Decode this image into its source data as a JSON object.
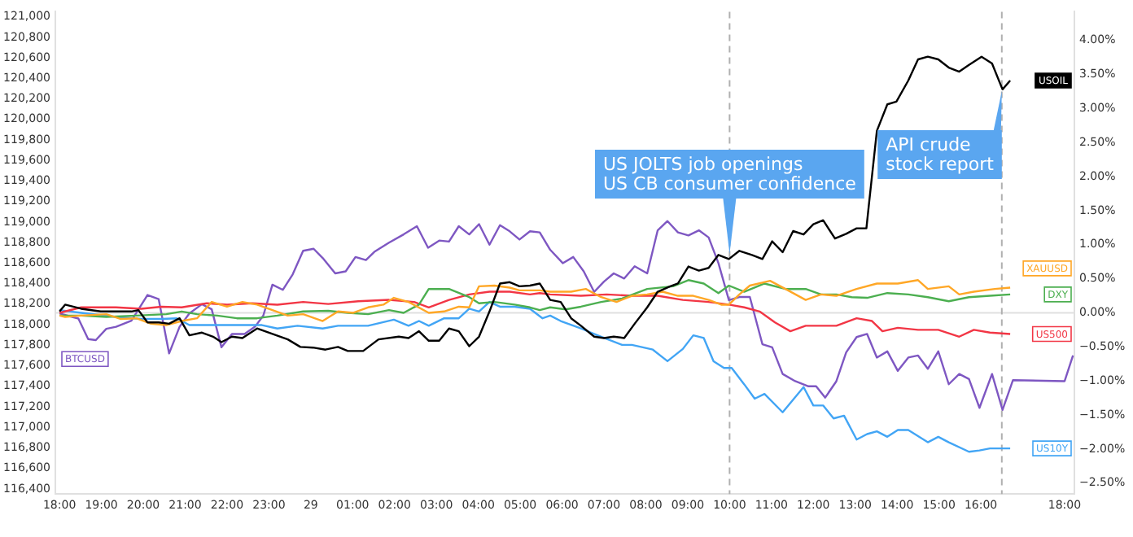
{
  "chart_data": {
    "type": "line",
    "xlim": [
      "--07-28T17:54",
      "--07-29T18:14"
    ],
    "xticks": [
      {
        "value": "--07-28T18:00",
        "label": "18:00"
      },
      {
        "value": "--07-28T19:00",
        "label": "19:00"
      },
      {
        "value": "--07-28T20:00",
        "label": "20:00"
      },
      {
        "value": "--07-28T21:00",
        "label": "21:00"
      },
      {
        "value": "--07-28T22:00",
        "label": "22:00"
      },
      {
        "value": "--07-28T23:00",
        "label": "23:00"
      },
      {
        "value": "--07-29T00:00",
        "label": "29"
      },
      {
        "value": "--07-29T01:00",
        "label": "01:00"
      },
      {
        "value": "--07-29T02:00",
        "label": "02:00"
      },
      {
        "value": "--07-29T03:00",
        "label": "03:00"
      },
      {
        "value": "--07-29T04:00",
        "label": "04:00"
      },
      {
        "value": "--07-29T05:00",
        "label": "05:00"
      },
      {
        "value": "--07-29T06:00",
        "label": "06:00"
      },
      {
        "value": "--07-29T07:00",
        "label": "07:00"
      },
      {
        "value": "--07-29T08:00",
        "label": "08:00"
      },
      {
        "value": "--07-29T09:00",
        "label": "09:00"
      },
      {
        "value": "--07-29T10:00",
        "label": "10:00"
      },
      {
        "value": "--07-29T11:00",
        "label": "11:00"
      },
      {
        "value": "--07-29T12:00",
        "label": "12:00"
      },
      {
        "value": "--07-29T13:00",
        "label": "13:00"
      },
      {
        "value": "--07-29T14:00",
        "label": "14:00"
      },
      {
        "value": "--07-29T15:00",
        "label": "15:00"
      },
      {
        "value": "--07-29T16:00",
        "label": "16:00"
      },
      {
        "value": "--07-29T18:00",
        "label": "18:00"
      }
    ],
    "ylim": [
      116350,
      121050
    ],
    "yticks": [
      {
        "value": 116400,
        "label": "116,400"
      },
      {
        "value": 116600,
        "label": "116,600"
      },
      {
        "value": 116800,
        "label": "116,800"
      },
      {
        "value": 117000,
        "label": "117,000"
      },
      {
        "value": 117200,
        "label": "117,200"
      },
      {
        "value": 117400,
        "label": "117,400"
      },
      {
        "value": 117600,
        "label": "117,600"
      },
      {
        "value": 117800,
        "label": "117,800"
      },
      {
        "value": 118000,
        "label": "118,000"
      },
      {
        "value": 118200,
        "label": "118,200"
      },
      {
        "value": 118400,
        "label": "118,400"
      },
      {
        "value": 118600,
        "label": "118,600"
      },
      {
        "value": 118800,
        "label": "118,800"
      },
      {
        "value": 119000,
        "label": "119,000"
      },
      {
        "value": 119200,
        "label": "119,200"
      },
      {
        "value": 119400,
        "label": "119,400"
      },
      {
        "value": 119600,
        "label": "119,600"
      },
      {
        "value": 119800,
        "label": "119,800"
      },
      {
        "value": 120000,
        "label": "120,000"
      },
      {
        "value": 120200,
        "label": "120,200"
      },
      {
        "value": 120400,
        "label": "120,400"
      },
      {
        "value": 120600,
        "label": "120,600"
      },
      {
        "value": 120800,
        "label": "120,800"
      },
      {
        "value": 121000,
        "label": "121,000"
      }
    ],
    "y2lim": [
      -2.66,
      4.42
    ],
    "y2ticks": [
      {
        "value": -2.5,
        "label": "−2.50%"
      },
      {
        "value": -2,
        "label": "−2.00%"
      },
      {
        "value": -1.5,
        "label": "−1.50%"
      },
      {
        "value": -1,
        "label": "−1.00%"
      },
      {
        "value": -0.5,
        "label": "−0.50%"
      },
      {
        "value": 0,
        "label": "0.00%"
      },
      {
        "value": 0.5,
        "label": "0.50%"
      },
      {
        "value": 1,
        "label": "1.00%"
      },
      {
        "value": 1.5,
        "label": "1.50%"
      },
      {
        "value": 2,
        "label": "2.00%"
      },
      {
        "value": 2.5,
        "label": "2.50%"
      },
      {
        "value": 3,
        "label": "3.00%"
      },
      {
        "value": 3.5,
        "label": "3.50%"
      },
      {
        "value": 4,
        "label": "4.00%"
      }
    ],
    "marker": "none",
    "line_style": "solid",
    "ref_lines": [
      {
        "axis": "y2",
        "value": 0,
        "color": "#e0e0e0",
        "line_style": "solid"
      },
      {
        "axis": "x",
        "value": "--07-29T10:00",
        "label": "US JOLTS job openings\nUS CB consumer confidence",
        "color": "#b0b0b0",
        "line_style": "dashed"
      },
      {
        "axis": "x",
        "value": "--07-29T16:30",
        "label": "API crude\nstock report",
        "color": "#b0b0b0",
        "line_style": "dashed"
      }
    ],
    "series": [
      {
        "name": "USOIL",
        "color": "#000000",
        "axis": "y2",
        "x": [
          "--07-28T18:00",
          "--07-28T18:08",
          "--07-28T18:31",
          "--07-28T18:59",
          "--07-28T19:43",
          "--07-28T19:53",
          "--07-28T20:06",
          "--07-28T20:22",
          "--07-28T20:37",
          "--07-28T20:52",
          "--07-28T21:06",
          "--07-28T21:24",
          "--07-28T21:40",
          "--07-28T21:52",
          "--07-28T22:07",
          "--07-28T22:22",
          "--07-28T22:43",
          "--07-28T23:05",
          "--07-28T23:27",
          "--07-28T23:45",
          "--07-29T00:03",
          "--07-29T00:21",
          "--07-29T00:39",
          "--07-29T00:53",
          "--07-29T01:15",
          "--07-29T01:37",
          "--07-29T02:06",
          "--07-29T02:20",
          "--07-29T02:35",
          "--07-29T02:49",
          "--07-29T03:04",
          "--07-29T03:18",
          "--07-29T03:32",
          "--07-29T03:47",
          "--07-29T04:01",
          "--07-29T04:16",
          "--07-29T04:31",
          "--07-29T04:45",
          "--07-29T04:59",
          "--07-29T05:14",
          "--07-29T05:28",
          "--07-29T05:43",
          "--07-29T05:58",
          "--07-29T06:13",
          "--07-29T06:27",
          "--07-29T06:46",
          "--07-29T07:00",
          "--07-29T07:14",
          "--07-29T07:29",
          "--07-29T07:44",
          "--07-29T08:02",
          "--07-29T08:17",
          "--07-29T08:35",
          "--07-29T08:46",
          "--07-29T09:01",
          "--07-29T09:16",
          "--07-29T09:30",
          "--07-29T09:44",
          "--07-29T09:59",
          "--07-29T10:14",
          "--07-29T10:32",
          "--07-29T10:47",
          "--07-29T11:01",
          "--07-29T11:16",
          "--07-29T11:31",
          "--07-29T11:46",
          "--07-29T12:00",
          "--07-29T12:14",
          "--07-29T12:31",
          "--07-29T12:47",
          "--07-29T13:02",
          "--07-29T13:16",
          "--07-29T13:20",
          "--07-29T13:31",
          "--07-29T13:46",
          "--07-29T13:59",
          "--07-29T14:16",
          "--07-29T14:30",
          "--07-29T14:44",
          "--07-29T14:59",
          "--07-29T15:14",
          "--07-29T15:29",
          "--07-29T15:43",
          "--07-29T16:01",
          "--07-29T16:16",
          "--07-29T16:31",
          "--07-29T16:42"
        ],
        "values": [
          0.02,
          0.12,
          0.06,
          0.02,
          0.02,
          0.04,
          -0.14,
          -0.14,
          -0.16,
          -0.08,
          -0.33,
          -0.29,
          -0.35,
          -0.43,
          -0.35,
          -0.37,
          -0.23,
          -0.31,
          -0.39,
          -0.5,
          -0.51,
          -0.54,
          -0.5,
          -0.56,
          -0.56,
          -0.39,
          -0.35,
          -0.37,
          -0.27,
          -0.41,
          -0.41,
          -0.23,
          -0.27,
          -0.49,
          -0.35,
          0.02,
          0.43,
          0.45,
          0.39,
          0.4,
          0.43,
          0.19,
          0.16,
          -0.08,
          -0.19,
          -0.35,
          -0.37,
          -0.35,
          -0.37,
          -0.16,
          0.08,
          0.31,
          0.39,
          0.43,
          0.68,
          0.62,
          0.66,
          0.85,
          0.79,
          0.91,
          0.85,
          0.79,
          1.05,
          0.89,
          1.2,
          1.15,
          1.3,
          1.36,
          1.09,
          1.16,
          1.24,
          1.24,
          1.63,
          2.67,
          3.06,
          3.1,
          3.41,
          3.72,
          3.76,
          3.72,
          3.6,
          3.54,
          3.64,
          3.76,
          3.66,
          3.28,
          3.41
        ]
      },
      {
        "name": "XAUUSD",
        "color": "#ffa726",
        "axis": "y2",
        "x": [
          "--07-28T18:00",
          "--07-28T18:08",
          "--07-28T18:31",
          "--07-28T19:07",
          "--07-28T19:28",
          "--07-28T19:50",
          "--07-28T20:11",
          "--07-28T20:33",
          "--07-28T20:55",
          "--07-28T21:17",
          "--07-28T21:38",
          "--07-28T22:00",
          "--07-28T22:22",
          "--07-28T22:43",
          "--07-28T23:05",
          "--07-28T23:27",
          "--07-28T23:49",
          "--07-29T00:17",
          "--07-29T00:39",
          "--07-29T01:01",
          "--07-29T01:22",
          "--07-29T01:44",
          "--07-29T01:59",
          "--07-29T02:20",
          "--07-29T02:49",
          "--07-29T03:11",
          "--07-29T03:32",
          "--07-29T03:47",
          "--07-29T04:01",
          "--07-29T04:23",
          "--07-29T04:45",
          "--07-29T04:59",
          "--07-29T05:28",
          "--07-29T05:43",
          "--07-29T06:13",
          "--07-29T06:34",
          "--07-29T06:56",
          "--07-29T07:18",
          "--07-29T07:40",
          "--07-29T08:02",
          "--07-29T08:24",
          "--07-29T08:46",
          "--07-29T09:08",
          "--07-29T09:30",
          "--07-29T09:48",
          "--07-29T09:59",
          "--07-29T10:14",
          "--07-29T10:29",
          "--07-29T10:58",
          "--07-29T11:20",
          "--07-29T11:49",
          "--07-29T12:11",
          "--07-29T12:33",
          "--07-29T13:02",
          "--07-29T13:31",
          "--07-29T14:01",
          "--07-29T14:30",
          "--07-29T14:44",
          "--07-29T15:14",
          "--07-29T15:29",
          "--07-29T15:50",
          "--07-29T16:20",
          "--07-29T16:42"
        ],
        "values": [
          -0.04,
          -0.06,
          -0.04,
          -0.02,
          -0.09,
          -0.08,
          -0.16,
          -0.18,
          -0.12,
          -0.08,
          0.16,
          0.09,
          0.16,
          0.12,
          0.04,
          -0.04,
          -0.02,
          -0.12,
          0.02,
          0,
          0.08,
          0.12,
          0.22,
          0.16,
          0,
          0.02,
          0.09,
          0.08,
          0.39,
          0.4,
          0.37,
          0.33,
          0.33,
          0.31,
          0.31,
          0.35,
          0.23,
          0.16,
          0.25,
          0.27,
          0.31,
          0.25,
          0.25,
          0.19,
          0.12,
          0.12,
          0.27,
          0.4,
          0.47,
          0.35,
          0.19,
          0.27,
          0.25,
          0.35,
          0.43,
          0.43,
          0.48,
          0.35,
          0.39,
          0.27,
          0.31,
          0.35,
          0.37
        ]
      },
      {
        "name": "DXY",
        "color": "#4caf50",
        "axis": "y2",
        "x": [
          "--07-28T18:00",
          "--07-28T18:31",
          "--07-28T19:07",
          "--07-28T19:50",
          "--07-28T20:33",
          "--07-28T20:55",
          "--07-28T21:17",
          "--07-28T21:46",
          "--07-28T22:14",
          "--07-28T22:43",
          "--07-28T23:12",
          "--07-28T23:49",
          "--07-29T00:25",
          "--07-29T00:53",
          "--07-29T01:22",
          "--07-29T01:52",
          "--07-29T02:13",
          "--07-29T02:35",
          "--07-29T02:49",
          "--07-29T03:18",
          "--07-29T03:47",
          "--07-29T04:01",
          "--07-29T04:23",
          "--07-29T04:52",
          "--07-29T05:14",
          "--07-29T05:28",
          "--07-29T05:43",
          "--07-29T06:05",
          "--07-29T06:27",
          "--07-29T06:56",
          "--07-29T07:26",
          "--07-29T08:02",
          "--07-29T08:39",
          "--07-29T09:01",
          "--07-29T09:23",
          "--07-29T09:44",
          "--07-29T09:59",
          "--07-29T10:21",
          "--07-29T10:50",
          "--07-29T11:20",
          "--07-29T11:49",
          "--07-29T12:11",
          "--07-29T12:33",
          "--07-29T12:55",
          "--07-29T13:17",
          "--07-29T13:46",
          "--07-29T14:16",
          "--07-29T14:44",
          "--07-29T15:14",
          "--07-29T15:43",
          "--07-29T16:13",
          "--07-29T16:42"
        ],
        "values": [
          -0.04,
          -0.04,
          -0.06,
          -0.04,
          -0.02,
          0.02,
          -0.02,
          -0.04,
          -0.08,
          -0.08,
          -0.04,
          0.02,
          0.03,
          0,
          -0.02,
          0.04,
          0,
          0.12,
          0.35,
          0.35,
          0.23,
          0.14,
          0.16,
          0.12,
          0.08,
          0.04,
          0.08,
          0.05,
          0.09,
          0.16,
          0.21,
          0.35,
          0.39,
          0.48,
          0.43,
          0.29,
          0.4,
          0.31,
          0.43,
          0.35,
          0.35,
          0.27,
          0.27,
          0.23,
          0.22,
          0.29,
          0.27,
          0.23,
          0.17,
          0.23,
          0.25,
          0.27
        ]
      },
      {
        "name": "US500",
        "color": "#f23645",
        "axis": "y2",
        "x": [
          "--07-28T18:00",
          "--07-28T18:31",
          "--07-28T19:21",
          "--07-28T19:57",
          "--07-28T20:26",
          "--07-28T20:55",
          "--07-28T21:31",
          "--07-28T22:00",
          "--07-28T22:36",
          "--07-28T23:12",
          "--07-28T23:49",
          "--07-29T00:25",
          "--07-29T01:08",
          "--07-29T01:52",
          "--07-29T02:28",
          "--07-29T02:49",
          "--07-29T03:18",
          "--07-29T03:47",
          "--07-29T04:16",
          "--07-29T04:45",
          "--07-29T05:14",
          "--07-29T05:28",
          "--07-29T05:43",
          "--07-29T06:27",
          "--07-29T07:04",
          "--07-29T07:40",
          "--07-29T08:17",
          "--07-29T08:53",
          "--07-29T09:30",
          "--07-29T09:59",
          "--07-29T10:21",
          "--07-29T10:43",
          "--07-29T11:05",
          "--07-29T11:27",
          "--07-29T11:49",
          "--07-29T12:11",
          "--07-29T12:33",
          "--07-29T13:02",
          "--07-29T13:24",
          "--07-29T13:39",
          "--07-29T14:01",
          "--07-29T14:30",
          "--07-29T14:59",
          "--07-29T15:29",
          "--07-29T15:50",
          "--07-29T16:13",
          "--07-29T16:42"
        ],
        "values": [
          0,
          0.08,
          0.08,
          0.06,
          0.09,
          0.08,
          0.14,
          0.12,
          0.14,
          0.12,
          0.16,
          0.13,
          0.17,
          0.19,
          0.16,
          0.08,
          0.19,
          0.27,
          0.31,
          0.31,
          0.27,
          0.29,
          0.27,
          0.25,
          0.27,
          0.25,
          0.25,
          0.19,
          0.16,
          0.12,
          0.08,
          0.02,
          -0.14,
          -0.27,
          -0.19,
          -0.19,
          -0.19,
          -0.08,
          -0.12,
          -0.27,
          -0.22,
          -0.25,
          -0.25,
          -0.35,
          -0.25,
          -0.29,
          -0.31
        ]
      },
      {
        "name": "US10Y",
        "color": "#42a5f5",
        "axis": "y2",
        "x": [
          "--07-28T18:00",
          "--07-28T18:31",
          "--07-28T19:21",
          "--07-28T19:57",
          "--07-28T20:26",
          "--07-28T20:48",
          "--07-28T21:06",
          "--07-28T21:38",
          "--07-28T22:14",
          "--07-28T22:50",
          "--07-28T23:12",
          "--07-28T23:41",
          "--07-29T00:17",
          "--07-29T00:39",
          "--07-29T01:22",
          "--07-29T01:59",
          "--07-29T02:20",
          "--07-29T02:35",
          "--07-29T02:49",
          "--07-29T03:11",
          "--07-29T03:32",
          "--07-29T03:47",
          "--07-29T04:01",
          "--07-29T04:16",
          "--07-29T04:31",
          "--07-29T04:52",
          "--07-29T05:14",
          "--07-29T05:32",
          "--07-29T05:43",
          "--07-29T05:58",
          "--07-29T06:27",
          "--07-29T06:56",
          "--07-29T07:26",
          "--07-29T07:40",
          "--07-29T08:10",
          "--07-29T08:31",
          "--07-29T08:53",
          "--07-29T09:08",
          "--07-29T09:23",
          "--07-29T09:37",
          "--07-29T09:52",
          "--07-29T10:03",
          "--07-29T10:21",
          "--07-29T10:36",
          "--07-29T10:50",
          "--07-29T11:16",
          "--07-29T11:46",
          "--07-29T12:00",
          "--07-29T12:14",
          "--07-29T12:29",
          "--07-29T12:44",
          "--07-29T13:02",
          "--07-29T13:17",
          "--07-29T13:31",
          "--07-29T13:46",
          "--07-29T14:01",
          "--07-29T14:16",
          "--07-29T14:44",
          "--07-29T14:59",
          "--07-29T15:14",
          "--07-29T15:43",
          "--07-29T15:58",
          "--07-29T16:13",
          "--07-29T16:42"
        ],
        "values": [
          0.04,
          0,
          -0.06,
          -0.09,
          -0.09,
          -0.08,
          -0.18,
          -0.18,
          -0.18,
          -0.18,
          -0.23,
          -0.19,
          -0.23,
          -0.19,
          -0.19,
          -0.1,
          -0.19,
          -0.12,
          -0.19,
          -0.08,
          -0.08,
          0.06,
          0.02,
          0.16,
          0.09,
          0.09,
          0.06,
          -0.08,
          -0.04,
          -0.12,
          -0.23,
          -0.35,
          -0.47,
          -0.47,
          -0.54,
          -0.71,
          -0.53,
          -0.33,
          -0.37,
          -0.71,
          -0.81,
          -0.81,
          -1.05,
          -1.26,
          -1.19,
          -1.46,
          -1.09,
          -1.36,
          -1.36,
          -1.55,
          -1.51,
          -1.86,
          -1.78,
          -1.74,
          -1.82,
          -1.72,
          -1.72,
          -1.9,
          -1.82,
          -1.9,
          -2.04,
          -2.02,
          -1.99,
          -1.99
        ]
      },
      {
        "name": "BTCUSD",
        "color": "#7e57c2",
        "axis": "y",
        "x": [
          "--07-28T18:00",
          "--07-28T18:05",
          "--07-28T18:27",
          "--07-28T18:41",
          "--07-28T18:52",
          "--07-28T19:07",
          "--07-28T19:21",
          "--07-28T19:43",
          "--07-28T20:06",
          "--07-28T20:22",
          "--07-28T20:37",
          "--07-28T20:52",
          "--07-28T21:06",
          "--07-28T21:24",
          "--07-28T21:38",
          "--07-28T21:52",
          "--07-28T22:07",
          "--07-28T22:25",
          "--07-28T22:40",
          "--07-28T22:52",
          "--07-28T23:05",
          "--07-28T23:20",
          "--07-28T23:34",
          "--07-28T23:49",
          "--07-29T00:04",
          "--07-29T00:17",
          "--07-29T00:35",
          "--07-29T00:50",
          "--07-29T01:04",
          "--07-29T01:19",
          "--07-29T01:31",
          "--07-29T01:52",
          "--07-29T02:13",
          "--07-29T02:32",
          "--07-29T02:48",
          "--07-29T03:04",
          "--07-29T03:18",
          "--07-29T03:32",
          "--07-29T03:47",
          "--07-29T04:01",
          "--07-29T04:16",
          "--07-29T04:31",
          "--07-29T04:45",
          "--07-29T04:59",
          "--07-29T05:14",
          "--07-29T05:28",
          "--07-29T05:43",
          "--07-29T06:01",
          "--07-29T06:16",
          "--07-29T06:31",
          "--07-29T06:46",
          "--07-29T07:00",
          "--07-29T07:14",
          "--07-29T07:29",
          "--07-29T07:44",
          "--07-29T08:02",
          "--07-29T08:17",
          "--07-29T08:31",
          "--07-29T08:46",
          "--07-29T09:01",
          "--07-29T09:16",
          "--07-29T09:30",
          "--07-29T09:44",
          "--07-29T09:59",
          "--07-29T10:14",
          "--07-29T10:29",
          "--07-29T10:47",
          "--07-29T11:01",
          "--07-29T11:16",
          "--07-29T11:34",
          "--07-29T11:53",
          "--07-29T12:04",
          "--07-29T12:17",
          "--07-29T12:33",
          "--07-29T12:47",
          "--07-29T13:02",
          "--07-29T13:17",
          "--07-29T13:31",
          "--07-29T13:46",
          "--07-29T14:01",
          "--07-29T14:16",
          "--07-29T14:30",
          "--07-29T14:44",
          "--07-29T14:59",
          "--07-29T15:14",
          "--07-29T15:29",
          "--07-29T15:43",
          "--07-29T15:58",
          "--07-29T16:16",
          "--07-29T16:31",
          "--07-29T16:46",
          "--07-29T18:00",
          "--07-29T18:12"
        ],
        "values": [
          118110,
          118100,
          118060,
          117860,
          117850,
          117960,
          117980,
          118040,
          118290,
          118250,
          117720,
          117980,
          118110,
          118200,
          118150,
          117780,
          117910,
          117910,
          117980,
          118090,
          118390,
          118340,
          118490,
          118720,
          118740,
          118650,
          118500,
          118520,
          118660,
          118630,
          118710,
          118800,
          118880,
          118960,
          118750,
          118820,
          118810,
          118960,
          118880,
          118980,
          118780,
          118970,
          118910,
          118830,
          118910,
          118900,
          118730,
          118600,
          118660,
          118520,
          118320,
          118420,
          118500,
          118450,
          118570,
          118500,
          118920,
          119010,
          118900,
          118870,
          118920,
          118850,
          118600,
          118240,
          118270,
          118270,
          117810,
          117780,
          117520,
          117450,
          117400,
          117400,
          117290,
          117450,
          117730,
          117880,
          117910,
          117680,
          117740,
          117550,
          117680,
          117700,
          117570,
          117740,
          117420,
          117520,
          117470,
          117190,
          117520,
          117170,
          117460,
          117450,
          117700
        ]
      }
    ]
  }
}
